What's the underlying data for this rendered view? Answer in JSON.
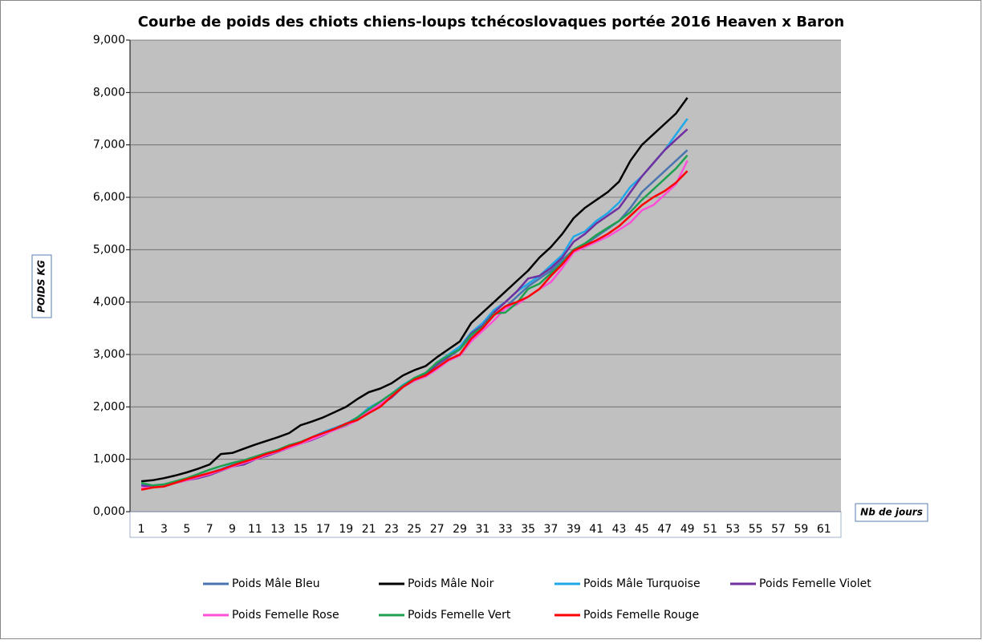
{
  "chart_data": {
    "type": "line",
    "title": "Courbe de poids des chiots chiens-loups tchécoslovaques portée 2016 Heaven x Baron",
    "y_label": "POIDS KG",
    "x_label": "Nb de jours",
    "categories": [
      "1",
      null,
      "3",
      null,
      "5",
      null,
      "7",
      null,
      "9",
      null,
      "11",
      null,
      "13",
      null,
      "15",
      null,
      "17",
      null,
      "19",
      null,
      "21",
      null,
      "23",
      null,
      "25",
      null,
      "27",
      null,
      "29",
      null,
      "31",
      null,
      "33",
      null,
      "35",
      null,
      "37",
      null,
      "39",
      null,
      "41",
      null,
      "43",
      null,
      "45",
      null,
      "47",
      null,
      "49",
      null,
      "51",
      null,
      "53",
      null,
      "55",
      null,
      "57",
      null,
      "59",
      null,
      "61",
      null
    ],
    "ylim": [
      0,
      9
    ],
    "yticks": [
      {
        "value": 0,
        "label": "0,000"
      },
      {
        "value": 1,
        "label": "1,000"
      },
      {
        "value": 2,
        "label": "2,000"
      },
      {
        "value": 3,
        "label": "3,000"
      },
      {
        "value": 4,
        "label": "4,000"
      },
      {
        "value": 5,
        "label": "5,000"
      },
      {
        "value": 6,
        "label": "6,000"
      },
      {
        "value": 7,
        "label": "7,000"
      },
      {
        "value": 8,
        "label": "8,000"
      },
      {
        "value": 9,
        "label": "9,000"
      }
    ],
    "grid": true,
    "series": [
      {
        "name": "Poids Mâle Bleu",
        "color": "#4a74b0",
        "values": [
          0.5,
          0.48,
          0.5,
          0.56,
          0.61,
          0.65,
          0.72,
          0.8,
          0.88,
          0.9,
          1.0,
          1.08,
          1.15,
          1.22,
          1.3,
          1.38,
          1.48,
          1.58,
          1.65,
          1.75,
          1.95,
          2.05,
          2.2,
          2.38,
          2.5,
          2.6,
          2.8,
          2.95,
          3.1,
          3.35,
          3.55,
          3.75,
          3.9,
          4.1,
          4.3,
          4.45,
          4.6,
          4.8,
          5.0,
          5.1,
          5.25,
          5.4,
          5.55,
          5.8,
          6.1,
          6.3,
          6.5,
          6.7,
          6.9,
          null,
          null,
          null,
          null,
          null,
          null,
          null,
          null,
          null,
          null,
          null,
          null,
          null
        ]
      },
      {
        "name": "Poids Mâle Noir",
        "color": "#000000",
        "values": [
          0.58,
          0.6,
          0.64,
          0.69,
          0.75,
          0.82,
          0.9,
          1.1,
          1.12,
          1.2,
          1.28,
          1.35,
          1.42,
          1.5,
          1.65,
          1.72,
          1.8,
          1.9,
          2.0,
          2.15,
          2.28,
          2.35,
          2.45,
          2.6,
          2.7,
          2.78,
          2.95,
          3.1,
          3.25,
          3.6,
          3.8,
          4.0,
          4.2,
          4.4,
          4.6,
          4.85,
          5.05,
          5.3,
          5.6,
          5.8,
          5.95,
          6.1,
          6.3,
          6.7,
          7.0,
          7.2,
          7.4,
          7.6,
          7.9,
          null,
          null,
          null,
          null,
          null,
          null,
          null,
          null,
          null,
          null,
          null,
          null,
          null
        ]
      },
      {
        "name": "Poids Mâle Turquoise",
        "color": "#1fa7e8",
        "values": [
          0.52,
          0.5,
          0.52,
          0.57,
          0.63,
          0.68,
          0.74,
          0.81,
          0.9,
          0.95,
          1.02,
          1.1,
          1.18,
          1.26,
          1.33,
          1.42,
          1.52,
          1.6,
          1.68,
          1.8,
          1.98,
          2.1,
          2.25,
          2.42,
          2.55,
          2.65,
          2.85,
          3.0,
          3.15,
          3.42,
          3.6,
          3.85,
          4.0,
          4.2,
          4.35,
          4.5,
          4.7,
          4.9,
          5.25,
          5.35,
          5.55,
          5.7,
          5.9,
          6.2,
          6.4,
          6.65,
          6.9,
          7.2,
          7.5,
          null,
          null,
          null,
          null,
          null,
          null,
          null,
          null,
          null,
          null,
          null,
          null,
          null
        ]
      },
      {
        "name": "Poids Femelle Violet",
        "color": "#7030a0",
        "values": [
          0.5,
          0.47,
          0.48,
          0.55,
          0.6,
          0.64,
          0.7,
          0.78,
          0.86,
          0.9,
          1.0,
          1.06,
          1.14,
          1.22,
          1.3,
          1.37,
          1.46,
          1.57,
          1.65,
          1.75,
          1.95,
          2.03,
          2.18,
          2.38,
          2.52,
          2.62,
          2.82,
          2.96,
          3.1,
          3.4,
          3.55,
          3.8,
          4.0,
          4.2,
          4.45,
          4.5,
          4.65,
          4.85,
          5.15,
          5.3,
          5.5,
          5.65,
          5.8,
          6.1,
          6.4,
          6.65,
          6.9,
          7.1,
          7.3,
          null,
          null,
          null,
          null,
          null,
          null,
          null,
          null,
          null,
          null,
          null,
          null,
          null
        ]
      },
      {
        "name": "Poids Femelle Rose",
        "color": "#ff4fd8",
        "values": [
          0.45,
          0.46,
          0.5,
          0.55,
          0.6,
          0.66,
          0.72,
          0.79,
          0.86,
          0.93,
          1.0,
          1.08,
          1.15,
          1.22,
          1.3,
          1.38,
          1.47,
          1.56,
          1.64,
          1.75,
          1.92,
          2.05,
          2.22,
          2.38,
          2.5,
          2.58,
          2.72,
          2.88,
          2.98,
          3.25,
          3.45,
          3.65,
          3.88,
          3.95,
          4.1,
          4.25,
          4.38,
          4.65,
          4.95,
          5.05,
          5.15,
          5.25,
          5.38,
          5.52,
          5.75,
          5.85,
          6.05,
          6.25,
          6.7,
          null,
          null,
          null,
          null,
          null,
          null,
          null,
          null,
          null,
          null,
          null,
          null,
          null
        ]
      },
      {
        "name": "Poids Femelle Vert",
        "color": "#1fa050",
        "values": [
          0.55,
          0.5,
          0.52,
          0.58,
          0.64,
          0.72,
          0.8,
          0.87,
          0.93,
          0.98,
          1.05,
          1.12,
          1.18,
          1.27,
          1.33,
          1.42,
          1.5,
          1.58,
          1.66,
          1.8,
          1.95,
          2.1,
          2.25,
          2.4,
          2.55,
          2.65,
          2.85,
          2.98,
          3.1,
          3.38,
          3.52,
          3.78,
          3.8,
          3.98,
          4.25,
          4.35,
          4.55,
          4.75,
          5.0,
          5.12,
          5.28,
          5.42,
          5.55,
          5.72,
          5.95,
          6.15,
          6.35,
          6.55,
          6.8,
          null,
          null,
          null,
          null,
          null,
          null,
          null,
          null,
          null,
          null,
          null,
          null,
          null
        ]
      },
      {
        "name": "Poids Femelle Rouge",
        "color": "#ff0000",
        "values": [
          0.42,
          0.46,
          0.48,
          0.55,
          0.62,
          0.68,
          0.74,
          0.8,
          0.88,
          0.95,
          1.02,
          1.1,
          1.16,
          1.25,
          1.32,
          1.42,
          1.5,
          1.58,
          1.68,
          1.75,
          1.88,
          2.0,
          2.2,
          2.38,
          2.52,
          2.6,
          2.75,
          2.9,
          3.0,
          3.3,
          3.5,
          3.75,
          3.92,
          4.0,
          4.1,
          4.25,
          4.5,
          4.72,
          4.98,
          5.08,
          5.18,
          5.3,
          5.45,
          5.65,
          5.85,
          6.0,
          6.12,
          6.28,
          6.5,
          null,
          null,
          null,
          null,
          null,
          null,
          null,
          null,
          null,
          null,
          null,
          null,
          null
        ]
      }
    ]
  }
}
